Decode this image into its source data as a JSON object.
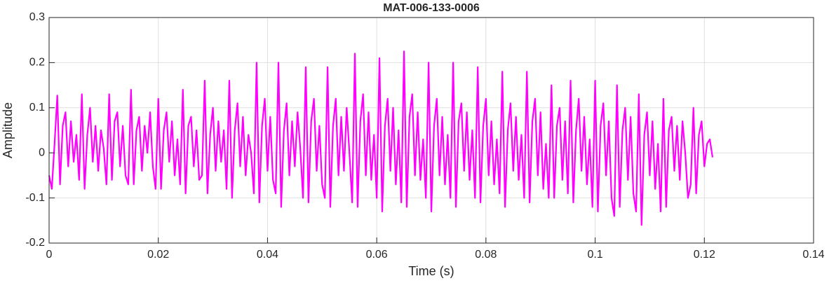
{
  "chart_data": {
    "type": "line",
    "title": "MAT-006-133-0006",
    "xlabel": "Time (s)",
    "ylabel": "Amplitude",
    "color": "#ff00ff",
    "grid": true,
    "xlim": [
      0,
      0.14
    ],
    "xticks": [
      0,
      0.02,
      0.04,
      0.06,
      0.08,
      0.1,
      0.12,
      0.14
    ],
    "ylim": [
      -0.2,
      0.3
    ],
    "yticks": [
      -0.2,
      -0.1,
      0,
      0.1,
      0.2,
      0.3
    ],
    "x": [
      0,
      0.0005,
      0.001,
      0.0015,
      0.002,
      0.0025,
      0.003,
      0.0035,
      0.004,
      0.0045,
      0.005,
      0.0055,
      0.006,
      0.0065,
      0.007,
      0.0075,
      0.008,
      0.0085,
      0.009,
      0.0095,
      0.01,
      0.0105,
      0.011,
      0.0115,
      0.012,
      0.0125,
      0.013,
      0.0135,
      0.014,
      0.0145,
      0.015,
      0.0155,
      0.016,
      0.0165,
      0.017,
      0.0175,
      0.018,
      0.0185,
      0.019,
      0.0195,
      0.02,
      0.0205,
      0.021,
      0.0215,
      0.022,
      0.0225,
      0.023,
      0.0235,
      0.024,
      0.0245,
      0.025,
      0.0255,
      0.026,
      0.0265,
      0.027,
      0.0275,
      0.028,
      0.0285,
      0.029,
      0.0295,
      0.03,
      0.0305,
      0.031,
      0.0315,
      0.032,
      0.0325,
      0.033,
      0.0335,
      0.034,
      0.0345,
      0.035,
      0.0355,
      0.036,
      0.0365,
      0.037,
      0.0375,
      0.038,
      0.0385,
      0.039,
      0.0395,
      0.04,
      0.0405,
      0.041,
      0.0415,
      0.042,
      0.0425,
      0.043,
      0.0435,
      0.044,
      0.0445,
      0.045,
      0.0455,
      0.046,
      0.0465,
      0.047,
      0.0475,
      0.048,
      0.0485,
      0.049,
      0.0495,
      0.05,
      0.0505,
      0.051,
      0.0515,
      0.052,
      0.0525,
      0.053,
      0.0535,
      0.054,
      0.0545,
      0.055,
      0.0555,
      0.056,
      0.0565,
      0.057,
      0.0575,
      0.058,
      0.0585,
      0.059,
      0.0595,
      0.06,
      0.0605,
      0.061,
      0.0615,
      0.062,
      0.0625,
      0.063,
      0.0635,
      0.064,
      0.0645,
      0.065,
      0.0655,
      0.066,
      0.0665,
      0.067,
      0.0675,
      0.068,
      0.0685,
      0.069,
      0.0695,
      0.07,
      0.0705,
      0.071,
      0.0715,
      0.072,
      0.0725,
      0.073,
      0.0735,
      0.074,
      0.0745,
      0.075,
      0.0755,
      0.076,
      0.0765,
      0.077,
      0.0775,
      0.078,
      0.0785,
      0.079,
      0.0795,
      0.08,
      0.0805,
      0.081,
      0.0815,
      0.082,
      0.0825,
      0.083,
      0.0835,
      0.084,
      0.0845,
      0.085,
      0.0855,
      0.086,
      0.0865,
      0.087,
      0.0875,
      0.088,
      0.0885,
      0.089,
      0.0895,
      0.09,
      0.0905,
      0.091,
      0.0915,
      0.092,
      0.0925,
      0.093,
      0.0935,
      0.094,
      0.0945,
      0.095,
      0.0955,
      0.096,
      0.0965,
      0.097,
      0.0975,
      0.098,
      0.0985,
      0.099,
      0.0995,
      0.1,
      0.1005,
      0.101,
      0.1015,
      0.102,
      0.1025,
      0.103,
      0.1035,
      0.104,
      0.1045,
      0.105,
      0.1055,
      0.106,
      0.1065,
      0.107,
      0.1075,
      0.108,
      0.1085,
      0.109,
      0.1095,
      0.11,
      0.1105,
      0.111,
      0.1115,
      0.112,
      0.1125,
      0.113,
      0.1135,
      0.114,
      0.1145,
      0.115,
      0.1155,
      0.116,
      0.1165,
      0.117,
      0.1175,
      0.118,
      0.1185,
      0.119,
      0.1195,
      0.12,
      0.1205,
      0.121,
      0.1215
    ],
    "values": [
      -0.05,
      -0.08,
      0.02,
      0.127,
      -0.07,
      0.06,
      0.09,
      -0.03,
      0.07,
      -0.02,
      0.04,
      -0.06,
      0.13,
      -0.08,
      0.04,
      0.1,
      -0.02,
      0.06,
      -0.04,
      0.05,
      0.01,
      -0.07,
      0.13,
      -0.06,
      0.07,
      0.09,
      -0.03,
      0.06,
      -0.05,
      -0.07,
      0.14,
      -0.07,
      0.05,
      0.08,
      -0.04,
      0.06,
      0.0,
      0.09,
      -0.03,
      -0.08,
      0.12,
      -0.08,
      0.05,
      0.09,
      -0.02,
      0.07,
      -0.05,
      0.03,
      -0.07,
      0.14,
      -0.09,
      0.06,
      0.08,
      -0.03,
      0.05,
      -0.06,
      -0.05,
      0.16,
      -0.09,
      0.04,
      0.1,
      -0.04,
      0.07,
      -0.02,
      0.05,
      -0.08,
      0.16,
      -0.1,
      0.05,
      0.11,
      -0.03,
      0.08,
      -0.05,
      0.04,
      0.0,
      -0.09,
      0.2,
      -0.11,
      0.06,
      0.12,
      -0.04,
      0.08,
      -0.06,
      -0.09,
      0.2,
      -0.12,
      0.05,
      0.11,
      -0.05,
      0.07,
      -0.03,
      0.09,
      0.01,
      -0.1,
      0.19,
      -0.11,
      0.07,
      0.12,
      -0.04,
      0.06,
      -0.07,
      -0.1,
      0.19,
      -0.12,
      0.06,
      0.12,
      -0.05,
      0.08,
      -0.04,
      0.1,
      0.0,
      -0.11,
      0.22,
      -0.12,
      0.07,
      0.13,
      -0.05,
      0.09,
      -0.06,
      0.04,
      -0.1,
      0.21,
      -0.13,
      0.06,
      0.12,
      -0.04,
      0.1,
      -0.07,
      0.05,
      -0.11,
      0.225,
      -0.12,
      0.08,
      0.13,
      -0.05,
      0.09,
      -0.06,
      0.03,
      -0.1,
      0.2,
      -0.13,
      0.06,
      0.12,
      -0.05,
      0.08,
      -0.07,
      0.04,
      -0.1,
      0.2,
      -0.12,
      0.07,
      0.11,
      -0.04,
      0.09,
      -0.06,
      0.05,
      -0.1,
      0.19,
      -0.11,
      0.06,
      0.12,
      -0.05,
      0.07,
      -0.07,
      0.03,
      -0.09,
      0.18,
      -0.12,
      0.05,
      0.11,
      -0.04,
      0.08,
      -0.06,
      0.04,
      -0.1,
      0.18,
      -0.11,
      0.07,
      0.12,
      -0.05,
      0.09,
      -0.08,
      0.02,
      -0.1,
      0.15,
      -0.1,
      0.06,
      0.1,
      -0.06,
      0.07,
      -0.09,
      0.16,
      -0.11,
      0.05,
      0.12,
      -0.04,
      0.08,
      -0.07,
      0.03,
      -0.12,
      0.16,
      -0.13,
      0.06,
      0.11,
      -0.05,
      0.07,
      -0.1,
      -0.14,
      0.15,
      -0.12,
      0.05,
      0.1,
      -0.06,
      0.08,
      -0.09,
      -0.13,
      0.13,
      -0.16,
      0.04,
      0.09,
      -0.05,
      0.07,
      -0.08,
      0.02,
      -0.13,
      0.12,
      -0.12,
      0.05,
      0.08,
      -0.04,
      0.06,
      -0.06,
      0.07,
      0.0,
      -0.1,
      -0.07,
      0.1,
      -0.09,
      0.04,
      0.07,
      -0.03,
      0.02,
      0.03,
      -0.01
    ]
  }
}
